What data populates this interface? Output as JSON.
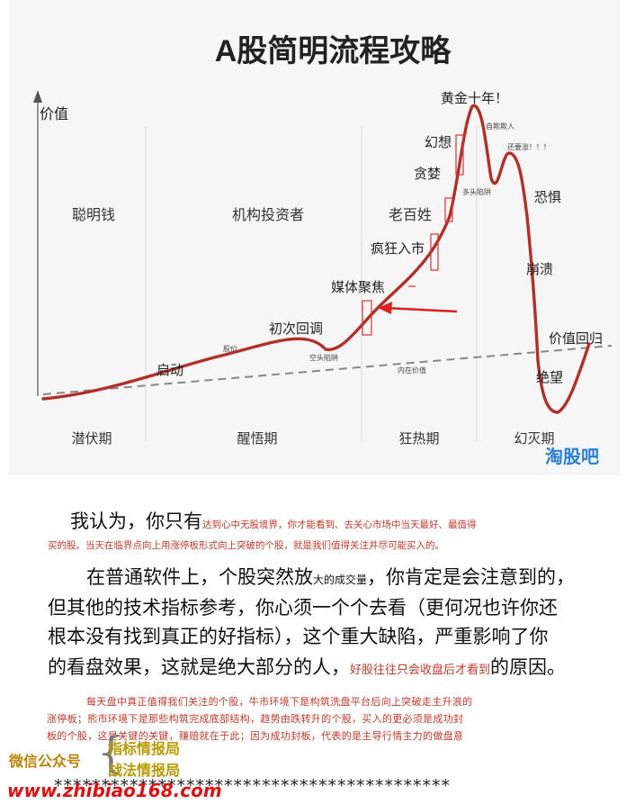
{
  "chart": {
    "title": "A股简明流程攻略",
    "y_axis_label": "价值",
    "zones": [
      "聪明钱",
      "机构投资者",
      "老百姓"
    ],
    "phases": [
      "潜伏期",
      "醒悟期",
      "狂热期",
      "幻灭期"
    ],
    "stages": {
      "qidong": "启动",
      "chuci": "初次回调",
      "meiti": "媒体聚焦",
      "fengkuang": "疯狂入市",
      "tanlan": "贪婪",
      "huanxiang": "幻想",
      "huangjin": "黄金十年！",
      "kongju": "恐惧",
      "bengkui": "崩溃",
      "juewang": "绝望",
      "jiazhi_huigui": "价值回归"
    },
    "small_notes": {
      "gujia": "股价",
      "kongtou_1": "空头陷阱",
      "neizai": "内在价值",
      "ziqi": "自欺欺人",
      "kongtou_2": "多头陷阱",
      "huanyao": "还要涨！！！"
    },
    "watermark": "淘股吧",
    "colors": {
      "curve": "#b2302a",
      "accent_red": "#c0392b",
      "arrow": "#e02020",
      "watermark": "#2d7fd0",
      "dashed": "#888888"
    }
  },
  "text": {
    "p1_big": "我认为，你只有",
    "p1_red_a": "达到心中无股境界，你才能看到、去关心市场中当天最好、最值得",
    "p1_red_b": "买的股。当天在临界点向上用涨停板形式向上突破的个股，就是我们值得关注并尽可能买入的。",
    "p2_a_big": "在普通软件上，个股突然放",
    "p2_a_small": "大的成交量",
    "p2_a_big2": "，你肯定是会注意到的，",
    "p2_b": "但其他的技术指标参考，你心须一个个去看（更何况也许你还",
    "p2_c": "根本没有找到真正的好指标），这个重大缺陷，严重影响了你",
    "p2_d_big": "的看盘效果，这就是绝大部分的人，",
    "p2_d_red": "好股往往只会收盘后才看到",
    "p2_d_big2": "的原因。",
    "note_1": "每天盘中真正值得我们关注的个股，牛市环境下是构筑洗盘平台后向上突破走主升浪的",
    "note_2": "涨停板；熊市环境下是那些构筑完成底部结构，趋势由跌转升的个股，买入的更必须是成功封",
    "note_3": "板的个股，这是关键的关键，赚赔就在于此；因为成功封板，代表的是主导行情主力的做盘意"
  },
  "footer": {
    "wechat_label": "微信公众号",
    "account_1": "指标情报局",
    "account_2": "战法情报局",
    "website": "www.zhibiao168.com",
    "stars": "******************************************"
  }
}
